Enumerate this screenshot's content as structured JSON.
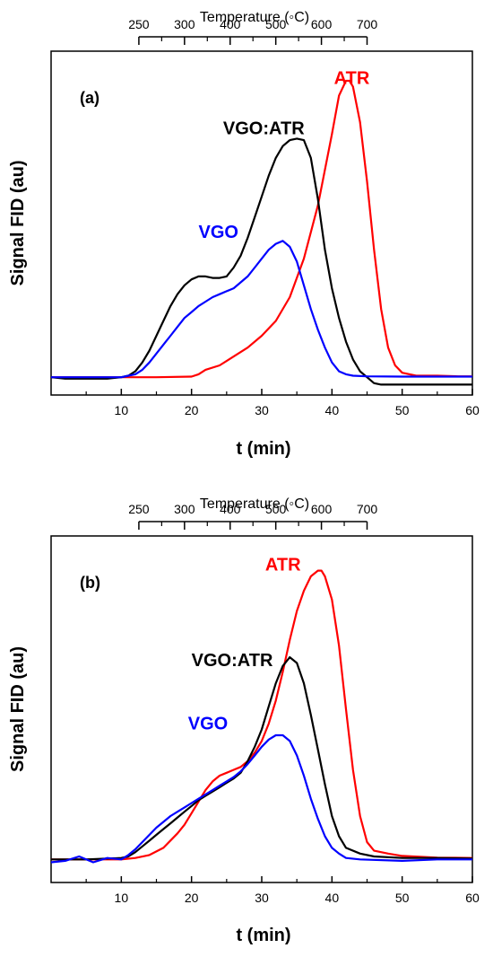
{
  "chart_data": [
    {
      "type": "line",
      "panel_label": "(a)",
      "xlabel": "t (min)",
      "ylabel": "Signal FID (au)",
      "top_axis_title": "Temperature (◦C)",
      "top_axis_ticks": [
        {
          "label": "250",
          "t": 12.5
        },
        {
          "label": "300",
          "t": 19
        },
        {
          "label": "400",
          "t": 25.5
        },
        {
          "label": "500",
          "t": 32
        },
        {
          "label": "600",
          "t": 38.5
        },
        {
          "label": "700",
          "t": 45
        }
      ],
      "xlim": [
        0,
        60
      ],
      "ylim": [
        -0.06,
        1.1
      ],
      "x_ticks": [
        10,
        20,
        30,
        40,
        50,
        60
      ],
      "series": [
        {
          "name": "ATR",
          "color": "#ff0000",
          "label_at": [
            40.3,
            0.99
          ],
          "points": [
            [
              0,
              0
            ],
            [
              5,
              0
            ],
            [
              10,
              0
            ],
            [
              15,
              0
            ],
            [
              20,
              0.002
            ],
            [
              21,
              0.01
            ],
            [
              22,
              0.025
            ],
            [
              24,
              0.04
            ],
            [
              26,
              0.07
            ],
            [
              28,
              0.1
            ],
            [
              30,
              0.14
            ],
            [
              32,
              0.19
            ],
            [
              34,
              0.27
            ],
            [
              36,
              0.4
            ],
            [
              38,
              0.58
            ],
            [
              40,
              0.82
            ],
            [
              41,
              0.95
            ],
            [
              42,
              1.0
            ],
            [
              42.5,
              1.0
            ],
            [
              43,
              0.98
            ],
            [
              44,
              0.86
            ],
            [
              45,
              0.66
            ],
            [
              46,
              0.43
            ],
            [
              47,
              0.23
            ],
            [
              48,
              0.1
            ],
            [
              49,
              0.04
            ],
            [
              50,
              0.015
            ],
            [
              52,
              0.005
            ],
            [
              55,
              0.005
            ],
            [
              58,
              0.003
            ],
            [
              60,
              0.003
            ]
          ]
        },
        {
          "name": "VGO:ATR",
          "color": "#000000",
          "label_at": [
            24.5,
            0.82
          ],
          "points": [
            [
              0,
              0
            ],
            [
              2,
              -0.005
            ],
            [
              4,
              -0.005
            ],
            [
              6,
              -0.005
            ],
            [
              8,
              -0.005
            ],
            [
              10,
              0
            ],
            [
              11,
              0.005
            ],
            [
              12,
              0.02
            ],
            [
              13,
              0.05
            ],
            [
              14,
              0.09
            ],
            [
              15,
              0.14
            ],
            [
              16,
              0.19
            ],
            [
              17,
              0.24
            ],
            [
              18,
              0.28
            ],
            [
              19,
              0.31
            ],
            [
              20,
              0.33
            ],
            [
              21,
              0.34
            ],
            [
              22,
              0.34
            ],
            [
              23,
              0.335
            ],
            [
              24,
              0.335
            ],
            [
              25,
              0.34
            ],
            [
              26,
              0.37
            ],
            [
              27,
              0.41
            ],
            [
              28,
              0.47
            ],
            [
              29,
              0.54
            ],
            [
              30,
              0.61
            ],
            [
              31,
              0.68
            ],
            [
              32,
              0.74
            ],
            [
              33,
              0.78
            ],
            [
              34,
              0.8
            ],
            [
              35,
              0.805
            ],
            [
              36,
              0.8
            ],
            [
              37,
              0.74
            ],
            [
              38,
              0.6
            ],
            [
              39,
              0.43
            ],
            [
              40,
              0.3
            ],
            [
              41,
              0.2
            ],
            [
              42,
              0.12
            ],
            [
              43,
              0.06
            ],
            [
              44,
              0.02
            ],
            [
              45,
              0
            ],
            [
              46,
              -0.02
            ],
            [
              47,
              -0.025
            ],
            [
              50,
              -0.025
            ],
            [
              55,
              -0.025
            ],
            [
              60,
              -0.025
            ]
          ]
        },
        {
          "name": "VGO",
          "color": "#0000ff",
          "label_at": [
            21,
            0.47
          ],
          "points": [
            [
              0,
              0
            ],
            [
              5,
              0
            ],
            [
              10,
              0
            ],
            [
              11,
              0.005
            ],
            [
              12,
              0.01
            ],
            [
              13,
              0.025
            ],
            [
              14,
              0.05
            ],
            [
              15,
              0.08
            ],
            [
              16,
              0.11
            ],
            [
              17,
              0.14
            ],
            [
              18,
              0.17
            ],
            [
              19,
              0.2
            ],
            [
              20,
              0.22
            ],
            [
              21,
              0.24
            ],
            [
              22,
              0.255
            ],
            [
              23,
              0.27
            ],
            [
              24,
              0.28
            ],
            [
              25,
              0.29
            ],
            [
              26,
              0.3
            ],
            [
              27,
              0.32
            ],
            [
              28,
              0.34
            ],
            [
              29,
              0.37
            ],
            [
              30,
              0.4
            ],
            [
              31,
              0.43
            ],
            [
              32,
              0.45
            ],
            [
              33,
              0.46
            ],
            [
              34,
              0.44
            ],
            [
              35,
              0.39
            ],
            [
              36,
              0.31
            ],
            [
              37,
              0.23
            ],
            [
              38,
              0.16
            ],
            [
              39,
              0.1
            ],
            [
              40,
              0.05
            ],
            [
              41,
              0.02
            ],
            [
              42,
              0.01
            ],
            [
              43,
              0.005
            ],
            [
              45,
              0.003
            ],
            [
              50,
              0.002
            ],
            [
              55,
              0.002
            ],
            [
              60,
              0.002
            ]
          ]
        }
      ]
    },
    {
      "type": "line",
      "panel_label": "(b)",
      "xlabel": "t (min)",
      "ylabel": "Signal FID (au)",
      "top_axis_title": "Temperature (◦C)",
      "top_axis_ticks": [
        {
          "label": "250",
          "t": 12.5
        },
        {
          "label": "300",
          "t": 19
        },
        {
          "label": "400",
          "t": 25.5
        },
        {
          "label": "500",
          "t": 32
        },
        {
          "label": "600",
          "t": 38.5
        },
        {
          "label": "700",
          "t": 45
        }
      ],
      "xlim": [
        0,
        60
      ],
      "ylim": [
        -0.08,
        1.12
      ],
      "x_ticks": [
        10,
        20,
        30,
        40,
        50,
        60
      ],
      "series": [
        {
          "name": "ATR",
          "color": "#ff0000",
          "label_at": [
            30.5,
            1.0
          ],
          "points": [
            [
              0,
              0
            ],
            [
              5,
              0
            ],
            [
              10,
              0
            ],
            [
              12,
              0.005
            ],
            [
              14,
              0.015
            ],
            [
              16,
              0.04
            ],
            [
              18,
              0.09
            ],
            [
              19,
              0.12
            ],
            [
              20,
              0.16
            ],
            [
              21,
              0.2
            ],
            [
              22,
              0.24
            ],
            [
              23,
              0.27
            ],
            [
              24,
              0.29
            ],
            [
              25,
              0.3
            ],
            [
              26,
              0.31
            ],
            [
              27,
              0.32
            ],
            [
              28,
              0.34
            ],
            [
              29,
              0.37
            ],
            [
              30,
              0.41
            ],
            [
              31,
              0.47
            ],
            [
              32,
              0.55
            ],
            [
              33,
              0.65
            ],
            [
              34,
              0.76
            ],
            [
              35,
              0.86
            ],
            [
              36,
              0.93
            ],
            [
              37,
              0.98
            ],
            [
              38,
              1.0
            ],
            [
              38.5,
              1.0
            ],
            [
              39,
              0.98
            ],
            [
              40,
              0.9
            ],
            [
              41,
              0.74
            ],
            [
              42,
              0.52
            ],
            [
              43,
              0.31
            ],
            [
              44,
              0.15
            ],
            [
              45,
              0.06
            ],
            [
              46,
              0.03
            ],
            [
              48,
              0.02
            ],
            [
              50,
              0.012
            ],
            [
              55,
              0.006
            ],
            [
              60,
              0.005
            ]
          ]
        },
        {
          "name": "VGO:ATR",
          "color": "#000000",
          "label_at": [
            20,
            0.67
          ],
          "points": [
            [
              0,
              0
            ],
            [
              5,
              0
            ],
            [
              10,
              0.005
            ],
            [
              11,
              0.01
            ],
            [
              12,
              0.025
            ],
            [
              13,
              0.045
            ],
            [
              14,
              0.065
            ],
            [
              15,
              0.085
            ],
            [
              16,
              0.105
            ],
            [
              17,
              0.125
            ],
            [
              18,
              0.145
            ],
            [
              19,
              0.165
            ],
            [
              20,
              0.185
            ],
            [
              21,
              0.205
            ],
            [
              22,
              0.22
            ],
            [
              23,
              0.235
            ],
            [
              24,
              0.25
            ],
            [
              25,
              0.265
            ],
            [
              26,
              0.28
            ],
            [
              27,
              0.3
            ],
            [
              28,
              0.34
            ],
            [
              29,
              0.39
            ],
            [
              30,
              0.45
            ],
            [
              31,
              0.53
            ],
            [
              32,
              0.61
            ],
            [
              33,
              0.67
            ],
            [
              34,
              0.7
            ],
            [
              35,
              0.68
            ],
            [
              36,
              0.61
            ],
            [
              37,
              0.5
            ],
            [
              38,
              0.38
            ],
            [
              39,
              0.26
            ],
            [
              40,
              0.15
            ],
            [
              41,
              0.08
            ],
            [
              42,
              0.04
            ],
            [
              44,
              0.02
            ],
            [
              46,
              0.01
            ],
            [
              50,
              0.005
            ],
            [
              55,
              0.005
            ],
            [
              60,
              0.003
            ]
          ]
        },
        {
          "name": "VGO",
          "color": "#0000ff",
          "label_at": [
            19.5,
            0.45
          ],
          "points": [
            [
              0,
              -0.01
            ],
            [
              2,
              -0.005
            ],
            [
              4,
              0.01
            ],
            [
              6,
              -0.01
            ],
            [
              8,
              0.005
            ],
            [
              10,
              0
            ],
            [
              11,
              0.015
            ],
            [
              12,
              0.035
            ],
            [
              13,
              0.06
            ],
            [
              14,
              0.085
            ],
            [
              15,
              0.11
            ],
            [
              16,
              0.13
            ],
            [
              17,
              0.15
            ],
            [
              18,
              0.165
            ],
            [
              19,
              0.18
            ],
            [
              20,
              0.195
            ],
            [
              21,
              0.21
            ],
            [
              22,
              0.225
            ],
            [
              23,
              0.24
            ],
            [
              24,
              0.255
            ],
            [
              25,
              0.27
            ],
            [
              26,
              0.285
            ],
            [
              27,
              0.305
            ],
            [
              28,
              0.33
            ],
            [
              29,
              0.36
            ],
            [
              30,
              0.39
            ],
            [
              31,
              0.415
            ],
            [
              32,
              0.43
            ],
            [
              33,
              0.43
            ],
            [
              34,
              0.41
            ],
            [
              35,
              0.36
            ],
            [
              36,
              0.29
            ],
            [
              37,
              0.21
            ],
            [
              38,
              0.14
            ],
            [
              39,
              0.08
            ],
            [
              40,
              0.04
            ],
            [
              41,
              0.02
            ],
            [
              42,
              0.005
            ],
            [
              44,
              0
            ],
            [
              50,
              -0.005
            ],
            [
              55,
              0
            ],
            [
              60,
              0
            ]
          ]
        }
      ]
    }
  ]
}
